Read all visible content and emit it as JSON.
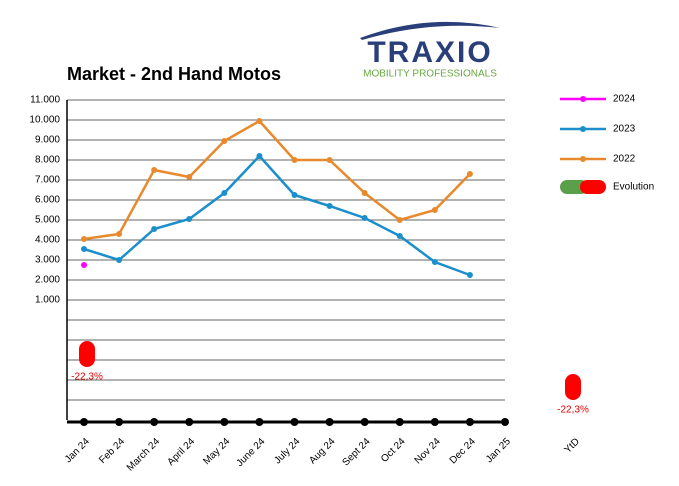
{
  "chart_data": {
    "type": "line",
    "title": "Market - 2nd Hand Motos",
    "logo_text": "TRAXIO",
    "logo_tagline": "MOBILITY PROFESSIONALS",
    "categories": [
      "Jan 24",
      "Feb 24",
      "March 24",
      "April 24",
      "May 24",
      "June 24",
      "July 24",
      "Aug 24",
      "Sept 24",
      "Oct 24",
      "Nov 24",
      "Dec 24",
      "Jan 25"
    ],
    "series": [
      {
        "name": "2024",
        "color": "#ff00ff",
        "values": [
          2750,
          null,
          null,
          null,
          null,
          null,
          null,
          null,
          null,
          null,
          null,
          null,
          null
        ]
      },
      {
        "name": "2023",
        "color": "#1a8fcc",
        "values": [
          3550,
          3000,
          4550,
          5050,
          6350,
          8200,
          6250,
          5700,
          5100,
          4200,
          2900,
          2250,
          null
        ]
      },
      {
        "name": "2022",
        "color": "#e8892b",
        "values": [
          4050,
          4300,
          7500,
          7150,
          8950,
          9950,
          8000,
          8000,
          6350,
          5000,
          5500,
          7300,
          null
        ]
      }
    ],
    "evolution": {
      "name": "Evolution",
      "color": "#ff0000",
      "values": [
        -22.3
      ],
      "value_labels": [
        "-22,3%"
      ]
    },
    "ytd": {
      "label": "YtD",
      "value": -22.3,
      "value_label": "-22,3%"
    },
    "ylim": [
      -5000,
      11000
    ],
    "yticks": [
      {
        "value": 1000,
        "label": "1.000"
      },
      {
        "value": 2000,
        "label": "2.000"
      },
      {
        "value": 3000,
        "label": "3.000"
      },
      {
        "value": 4000,
        "label": "4.000"
      },
      {
        "value": 5000,
        "label": "5.000"
      },
      {
        "value": 6000,
        "label": "6.000"
      },
      {
        "value": 7000,
        "label": "7.000"
      },
      {
        "value": 8000,
        "label": "8.000"
      },
      {
        "value": 9000,
        "label": "9.000"
      },
      {
        "value": 10000,
        "label": "10.000"
      },
      {
        "value": 11000,
        "label": "11.000"
      }
    ],
    "unlabeled_grid": [
      0,
      -1000,
      -2000,
      -3000,
      -4000
    ],
    "grid": true
  }
}
